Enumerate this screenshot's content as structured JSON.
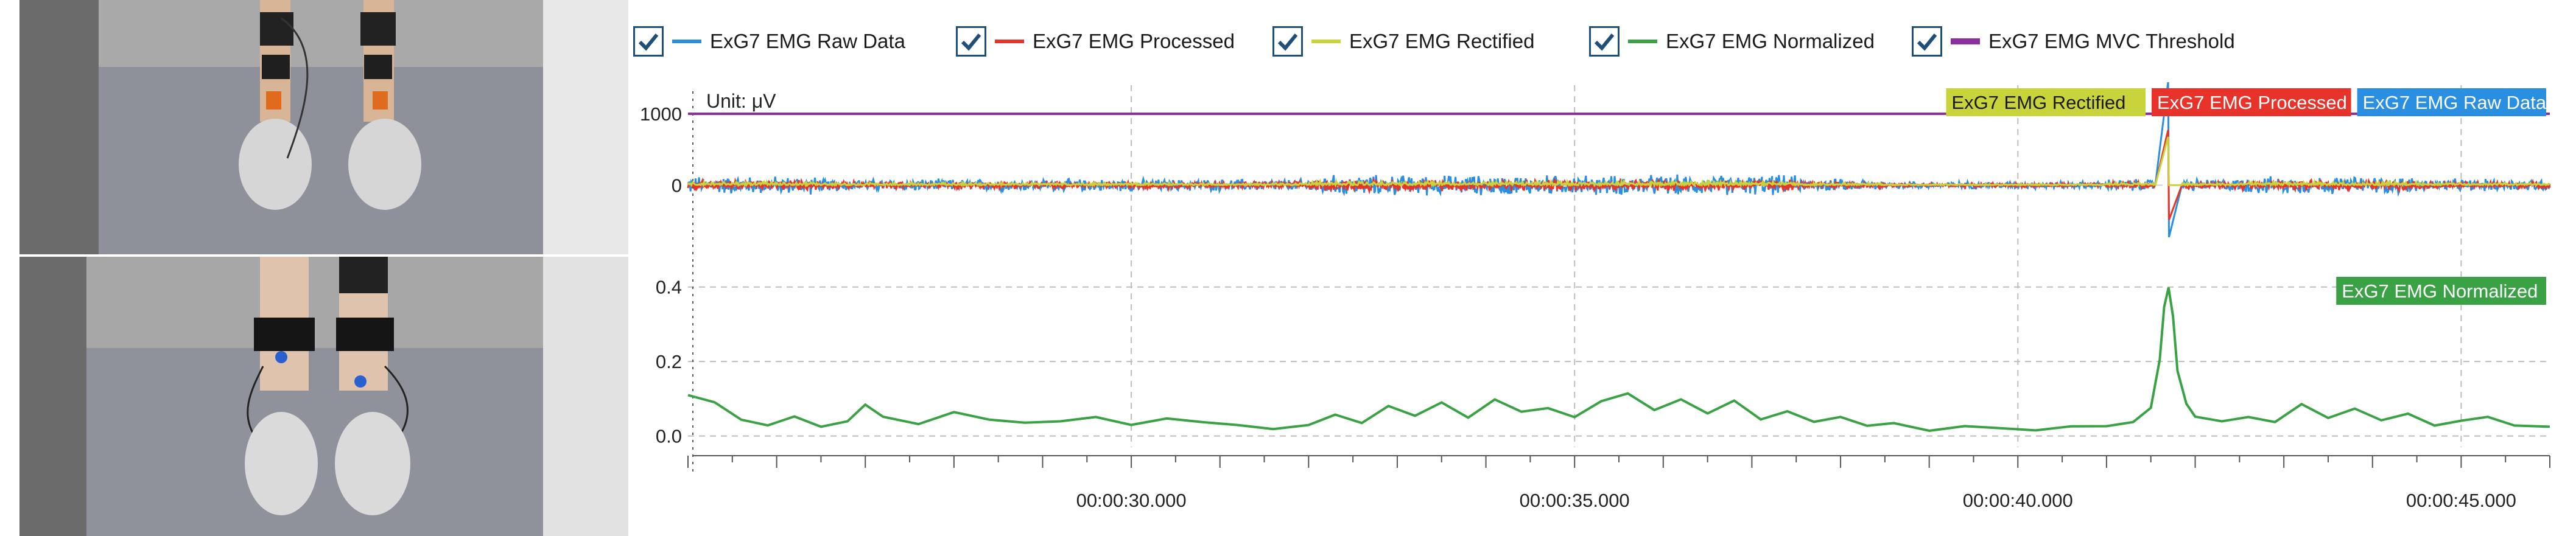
{
  "legend": {
    "items": [
      {
        "label": "ExG7 EMG Raw Data",
        "color": "#2a8fe0",
        "checked": true
      },
      {
        "label": "ExG7 EMG Processed",
        "color": "#e8332b",
        "checked": true
      },
      {
        "label": "ExG7 EMG Rectified",
        "color": "#c9d43a",
        "checked": true
      },
      {
        "label": "ExG7 EMG Normalized",
        "color": "#3aa245",
        "checked": true
      },
      {
        "label": "ExG7 EMG MVC Threshold",
        "color": "#8b2fa0",
        "checked": true
      }
    ]
  },
  "photos": {
    "front_icon": "legs-front-view-photo",
    "back_icon": "legs-back-view-photo"
  },
  "chart_data": [
    {
      "type": "line",
      "unit_label": "Unit: μV",
      "yticks": [
        "1000",
        "0"
      ],
      "ylim": [
        -900,
        1400
      ],
      "x_range_seconds": [
        25.0,
        46.0
      ],
      "series": [
        {
          "name": "ExG7 EMG Raw Data",
          "color": "#2a8fe0",
          "noise_amplitude": 160,
          "peak": {
            "t": 41.7,
            "values": [
              1500,
              -750
            ]
          }
        },
        {
          "name": "ExG7 EMG Processed",
          "color": "#e8332b",
          "noise_amplitude": 90,
          "peak": {
            "t": 41.7,
            "values": [
              800,
              -500
            ]
          }
        },
        {
          "name": "ExG7 EMG Rectified",
          "color": "#c9d43a",
          "noise_amplitude": 60,
          "peak": {
            "t": 41.7,
            "values": [
              700,
              0
            ]
          }
        },
        {
          "name": "ExG7 EMG MVC Threshold",
          "color": "#8b2fa0",
          "constant": 1000
        }
      ],
      "series_tags": [
        {
          "label": "ExG7 EMG Rectified",
          "color": "#c9d43a",
          "text_color": "#1a1a1a"
        },
        {
          "label": "ExG7 EMG Processed",
          "color": "#e8332b",
          "text_color": "#ffffff"
        },
        {
          "label": "ExG7 EMG Raw Data",
          "color": "#2a8fe0",
          "text_color": "#ffffff"
        }
      ]
    },
    {
      "type": "line",
      "yticks": [
        "0.4",
        "0.2",
        "0.0"
      ],
      "ylim": [
        -0.03,
        0.46
      ],
      "x_range_seconds": [
        25.0,
        46.0
      ],
      "series": [
        {
          "name": "ExG7 EMG Normalized",
          "color": "#3aa245",
          "points": [
            [
              25.0,
              0.11
            ],
            [
              25.3,
              0.09
            ],
            [
              25.6,
              0.04
            ],
            [
              25.9,
              0.03
            ],
            [
              26.2,
              0.05
            ],
            [
              26.5,
              0.03
            ],
            [
              26.8,
              0.04
            ],
            [
              27.0,
              0.09
            ],
            [
              27.2,
              0.05
            ],
            [
              27.6,
              0.03
            ],
            [
              28.0,
              0.06
            ],
            [
              28.4,
              0.04
            ],
            [
              28.8,
              0.03
            ],
            [
              29.2,
              0.04
            ],
            [
              29.6,
              0.05
            ],
            [
              30.0,
              0.03
            ],
            [
              30.4,
              0.05
            ],
            [
              30.8,
              0.04
            ],
            [
              31.2,
              0.03
            ],
            [
              31.6,
              0.02
            ],
            [
              32.0,
              0.03
            ],
            [
              32.3,
              0.06
            ],
            [
              32.6,
              0.04
            ],
            [
              32.9,
              0.08
            ],
            [
              33.2,
              0.06
            ],
            [
              33.5,
              0.09
            ],
            [
              33.8,
              0.05
            ],
            [
              34.1,
              0.1
            ],
            [
              34.4,
              0.06
            ],
            [
              34.7,
              0.08
            ],
            [
              35.0,
              0.05
            ],
            [
              35.3,
              0.09
            ],
            [
              35.6,
              0.11
            ],
            [
              35.9,
              0.07
            ],
            [
              36.2,
              0.1
            ],
            [
              36.5,
              0.06
            ],
            [
              36.8,
              0.09
            ],
            [
              37.1,
              0.05
            ],
            [
              37.4,
              0.07
            ],
            [
              37.7,
              0.04
            ],
            [
              38.0,
              0.05
            ],
            [
              38.3,
              0.03
            ],
            [
              38.6,
              0.04
            ],
            [
              39.0,
              0.02
            ],
            [
              39.4,
              0.03
            ],
            [
              39.8,
              0.02
            ],
            [
              40.2,
              0.02
            ],
            [
              40.6,
              0.03
            ],
            [
              41.0,
              0.03
            ],
            [
              41.3,
              0.04
            ],
            [
              41.5,
              0.08
            ],
            [
              41.6,
              0.2
            ],
            [
              41.65,
              0.35
            ],
            [
              41.7,
              0.4
            ],
            [
              41.75,
              0.32
            ],
            [
              41.8,
              0.18
            ],
            [
              41.9,
              0.09
            ],
            [
              42.0,
              0.05
            ],
            [
              42.3,
              0.04
            ],
            [
              42.6,
              0.05
            ],
            [
              42.9,
              0.04
            ],
            [
              43.2,
              0.09
            ],
            [
              43.5,
              0.05
            ],
            [
              43.8,
              0.07
            ],
            [
              44.1,
              0.04
            ],
            [
              44.4,
              0.06
            ],
            [
              44.7,
              0.03
            ],
            [
              45.0,
              0.04
            ],
            [
              45.3,
              0.05
            ],
            [
              45.6,
              0.03
            ],
            [
              46.0,
              0.02
            ]
          ]
        }
      ],
      "series_tags": [
        {
          "label": "ExG7 EMG Normalized",
          "color": "#3aa245",
          "text_color": "#ffffff"
        }
      ]
    }
  ],
  "time_axis": {
    "ticks": [
      "00:00:30.000",
      "00:00:35.000",
      "00:00:40.000",
      "00:00:45.000"
    ],
    "tick_seconds": [
      30,
      35,
      40,
      45
    ]
  }
}
